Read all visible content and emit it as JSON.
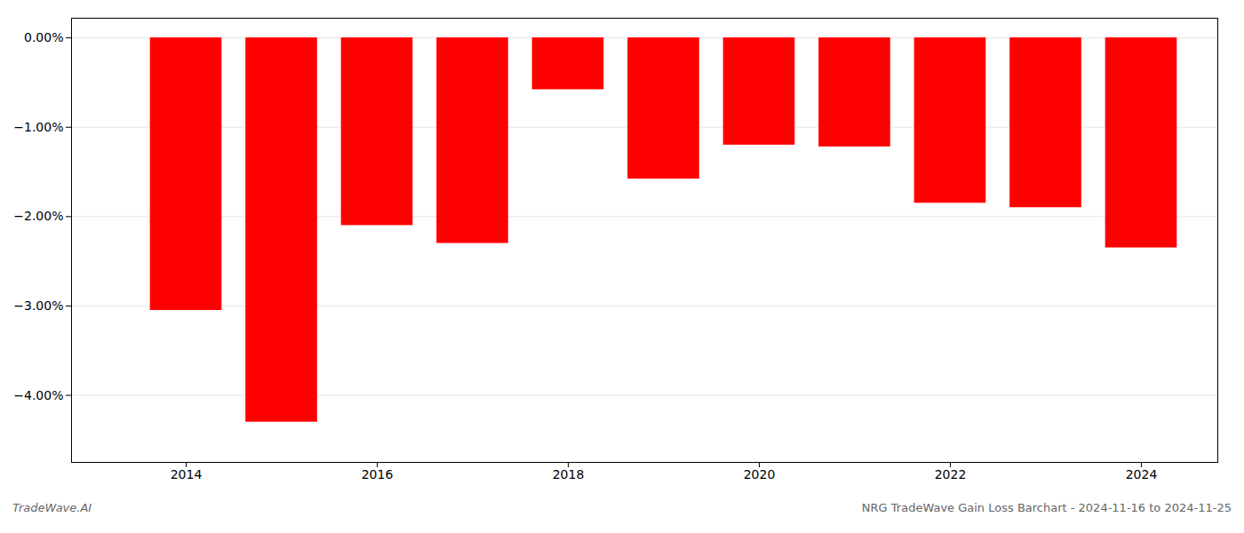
{
  "chart_data": {
    "type": "bar",
    "x": [
      2014,
      2015,
      2016,
      2017,
      2018,
      2019,
      2020,
      2021,
      2022,
      2023,
      2024
    ],
    "values": [
      -3.05,
      -4.3,
      -2.1,
      -2.3,
      -0.58,
      -1.58,
      -1.2,
      -1.22,
      -1.85,
      -1.9,
      -2.35
    ],
    "color": "#ff0000",
    "xlim": [
      2012.8,
      2024.8
    ],
    "xticks": [
      2014,
      2016,
      2018,
      2020,
      2022,
      2024
    ],
    "ylim": [
      -4.75,
      0.22
    ],
    "yticks": [
      {
        "value": 0.0,
        "label": "0.00%"
      },
      {
        "value": -1.0,
        "label": "−1.00%"
      },
      {
        "value": -2.0,
        "label": "−2.00%"
      },
      {
        "value": -3.0,
        "label": "−3.00%"
      },
      {
        "value": -4.0,
        "label": "−4.00%"
      }
    ],
    "grid": true,
    "annotations": [
      "TradeWave.AI",
      "NRG TradeWave Gain Loss Barchart - 2024-11-16 to 2024-11-25"
    ]
  }
}
